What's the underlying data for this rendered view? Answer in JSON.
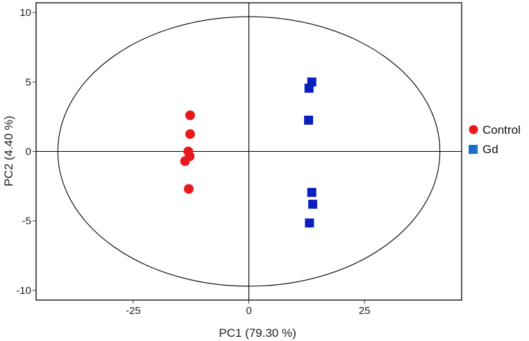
{
  "chart_data": {
    "type": "scatter",
    "xlabel": "PC1 (79.30 %)",
    "ylabel": "PC2 (4.40 %)",
    "xlim": [
      -46,
      46
    ],
    "ylim": [
      -10.7,
      10.7
    ],
    "x_ticks": [
      -25,
      0,
      25
    ],
    "x_tick_labels": [
      "-25",
      "0",
      "25"
    ],
    "y_ticks": [
      -10,
      -5,
      0,
      5,
      10
    ],
    "y_tick_labels": [
      "-10",
      "-5",
      "0",
      "5",
      "10"
    ],
    "grid": false,
    "reference_lines": {
      "x": 0,
      "y": 0
    },
    "confidence_ellipse": {
      "center": [
        0,
        0
      ],
      "x_semi_axis": 41.3,
      "y_semi_axis": 9.7
    },
    "legend_position": "right",
    "series": [
      {
        "name": "Control",
        "color": "#e8191c",
        "marker": "circle",
        "points": [
          {
            "x": -12.7,
            "y": 2.6
          },
          {
            "x": -12.7,
            "y": 1.25
          },
          {
            "x": -13.1,
            "y": 0.0
          },
          {
            "x": -12.8,
            "y": -0.35
          },
          {
            "x": -13.8,
            "y": -0.7
          },
          {
            "x": -13.0,
            "y": -2.7
          }
        ]
      },
      {
        "name": "Gd",
        "color": "#0a1fbf",
        "legend_color": "#1a6fc4",
        "marker": "square",
        "points": [
          {
            "x": 13.6,
            "y": 5.0
          },
          {
            "x": 13.0,
            "y": 4.55
          },
          {
            "x": 12.9,
            "y": 2.25
          },
          {
            "x": 13.6,
            "y": -2.95
          },
          {
            "x": 13.8,
            "y": -3.8
          },
          {
            "x": 13.1,
            "y": -5.15
          }
        ]
      }
    ]
  }
}
